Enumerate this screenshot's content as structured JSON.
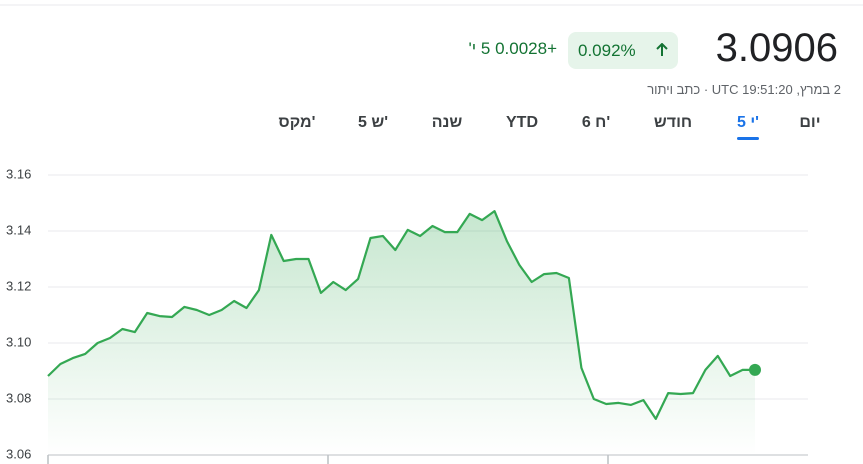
{
  "header": {
    "price": "3.0906",
    "change_percent": "0.092%",
    "change": "+0.0028",
    "period": "5 י'",
    "timestamp": "2 במרץ, UTC 19:51:20",
    "disclaimer": "כתב ויתור"
  },
  "tabs": [
    "יום",
    "5 י'",
    "חודש",
    "6 ח'",
    "YTD",
    "שנה",
    "5 ש'",
    "מקס'"
  ],
  "active_tab": 1,
  "chart_data": {
    "type": "line",
    "color": "#34a853",
    "grid": true,
    "categories": [
      null,
      null,
      null,
      null,
      null,
      null,
      null,
      null,
      null,
      null,
      null,
      null,
      null,
      null,
      null,
      null,
      null,
      null,
      null,
      null,
      null,
      null,
      null,
      null,
      null,
      null,
      null,
      null,
      null,
      null,
      null,
      null,
      null,
      null,
      null,
      null,
      null,
      null,
      null,
      null,
      null,
      null,
      null,
      null,
      null,
      null,
      null,
      null,
      null,
      null,
      null,
      null,
      null,
      null,
      null,
      null,
      null,
      null
    ],
    "values": [
      3.0882,
      3.0925,
      3.0946,
      3.0961,
      3.1,
      3.1018,
      3.105,
      3.1039,
      3.1107,
      3.1096,
      3.1093,
      3.1129,
      3.1118,
      3.11,
      3.1118,
      3.115,
      3.1125,
      3.1189,
      3.1386,
      3.1293,
      3.13,
      3.13,
      3.1179,
      3.1218,
      3.1189,
      3.1229,
      3.1375,
      3.1382,
      3.1332,
      3.1404,
      3.1382,
      3.1418,
      3.1396,
      3.1396,
      3.1461,
      3.1439,
      3.1471,
      3.1364,
      3.1279,
      3.1218,
      3.1246,
      3.125,
      3.1232,
      3.0911,
      3.08,
      3.0782,
      3.0786,
      3.0779,
      3.0796,
      3.0729,
      3.0821,
      3.0818,
      3.0821,
      3.0904,
      3.0954,
      3.0882,
      3.0904,
      3.0904
    ],
    "ylim": [
      3.06,
      3.16
    ],
    "yticks": [
      3.06,
      3.08,
      {
        "value": 3.1,
        "label": "3.10"
      },
      3.12,
      3.14,
      3.16
    ]
  }
}
